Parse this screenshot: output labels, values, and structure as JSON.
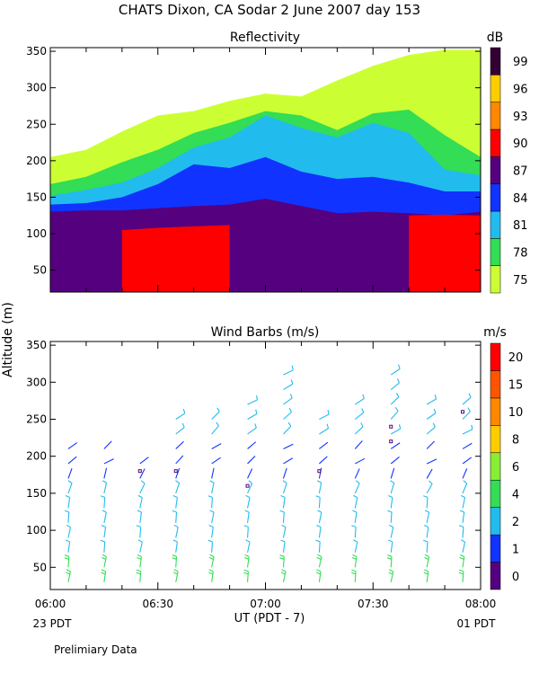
{
  "figure": {
    "title": "CHATS Dixon, CA  Sodar    2 June 2007   day 153",
    "shared_ylabel": "Altitude (m)",
    "shared_xlabel": "UT  (PDT - 7)",
    "left_sublabel": "23 PDT",
    "right_sublabel": "01 PDT",
    "footnote": "Prelimiary Data"
  },
  "chart_data": [
    {
      "type": "contour",
      "title": "Reflectivity",
      "xlabel": "UT  (PDT - 7)",
      "ylabel": "Altitude (m)",
      "x_ticks": [
        "06:00",
        "06:30",
        "07:00",
        "07:30",
        "08:00"
      ],
      "y_ticks": [
        50,
        100,
        150,
        200,
        250,
        300,
        350
      ],
      "xlim": [
        "06:00",
        "08:00"
      ],
      "ylim": [
        20,
        355
      ],
      "colorbar": {
        "unit": "dB",
        "levels": [
          75,
          78,
          81,
          84,
          87,
          90,
          93,
          96,
          99
        ],
        "colors": [
          "#ccff33",
          "#33dd55",
          "#22bbee",
          "#1133ff",
          "#55007f",
          "#ff0000",
          "#ff8800",
          "#ffcc00",
          "#330033"
        ]
      },
      "layers": [
        {
          "level": 75,
          "altitude_top_m": [
            205,
            215,
            240,
            262,
            268,
            282,
            292,
            288,
            310,
            330,
            345,
            352,
            352
          ]
        },
        {
          "level": 78,
          "altitude_top_m": [
            168,
            178,
            198,
            215,
            238,
            252,
            268,
            262,
            242,
            265,
            270,
            235,
            205
          ]
        },
        {
          "level": 81,
          "altitude_top_m": [
            152,
            160,
            170,
            190,
            218,
            232,
            262,
            245,
            232,
            252,
            238,
            188,
            180
          ]
        },
        {
          "level": 84,
          "altitude_top_m": [
            140,
            142,
            150,
            168,
            195,
            190,
            205,
            185,
            175,
            178,
            170,
            158,
            158
          ]
        },
        {
          "level": 87,
          "altitude_top_m": [
            130,
            132,
            132,
            135,
            138,
            140,
            148,
            138,
            128,
            130,
            128,
            125,
            130
          ]
        },
        {
          "level": 90,
          "altitude_top_m": [
            null,
            null,
            105,
            108,
            110,
            112,
            null,
            null,
            null,
            null,
            125,
            126,
            125
          ]
        }
      ]
    },
    {
      "type": "wind_barbs",
      "title": "Wind Barbs (m/s)",
      "xlabel": "UT  (PDT - 7)",
      "ylabel": "Altitude (m)",
      "x_ticks": [
        "06:00",
        "06:30",
        "07:00",
        "07:30",
        "08:00"
      ],
      "y_ticks": [
        50,
        100,
        150,
        200,
        250,
        300,
        350
      ],
      "xlim": [
        "06:00",
        "08:00"
      ],
      "ylim": [
        20,
        355
      ],
      "colorbar": {
        "unit": "m/s",
        "tick_labels": [
          "0",
          "1",
          "2",
          "4",
          "6",
          "8",
          "10",
          "15",
          "20"
        ],
        "colors": [
          "#55007f",
          "#1133ff",
          "#22bbee",
          "#33dd55",
          "#88ee33",
          "#ffcc00",
          "#ff8800",
          "#ff5500",
          "#ff0000"
        ]
      },
      "times": [
        "06:05",
        "06:15",
        "06:25",
        "06:35",
        "06:45",
        "06:55",
        "07:05",
        "07:15",
        "07:25",
        "07:35",
        "07:45",
        "07:55"
      ],
      "altitudes_m": [
        30,
        50,
        70,
        90,
        110,
        130,
        150,
        170,
        190,
        210,
        230,
        250,
        270,
        290,
        310
      ],
      "max_altitude_m": [
        210,
        215,
        200,
        260,
        255,
        275,
        310,
        265,
        275,
        320,
        275,
        280
      ],
      "speed_profile_m_s": {
        "altitude_m": [
          30,
          120,
          160,
          200,
          250,
          320
        ],
        "speed_m_s": [
          4.5,
          3.2,
          2.0,
          1.5,
          3.0,
          4.0
        ]
      },
      "calm_points": [
        {
          "time": "06:25",
          "altitude_m": 180
        },
        {
          "time": "06:35",
          "altitude_m": 180
        },
        {
          "time": "06:55",
          "altitude_m": 160
        },
        {
          "time": "07:15",
          "altitude_m": 180
        },
        {
          "time": "07:35",
          "altitude_m": 240
        },
        {
          "time": "07:35",
          "altitude_m": 220
        },
        {
          "time": "07:55",
          "altitude_m": 260
        }
      ]
    }
  ]
}
